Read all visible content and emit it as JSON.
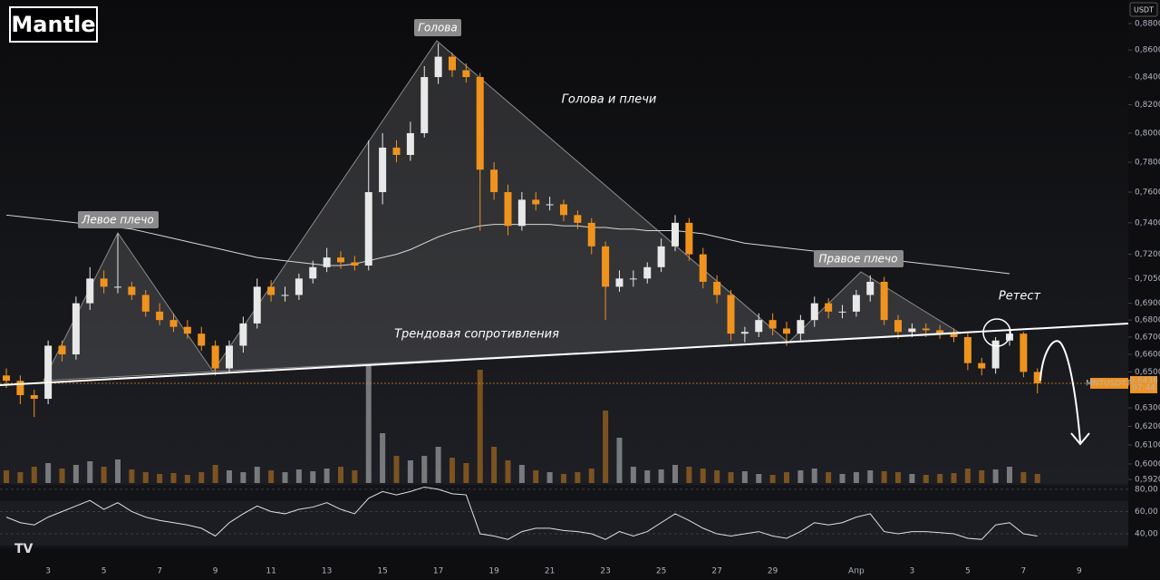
{
  "chart_data": {
    "type": "candlestick",
    "title": "Mantle",
    "currency": "USDT",
    "symbol": "MNTUSDT.P",
    "last_price": {
      "value": 0.6436,
      "label": "0,6436"
    },
    "countdown": "07:44",
    "annotations": {
      "head": "Голова",
      "left_shoulder": "Левое плечо",
      "right_shoulder": "Правое плечо",
      "pattern": "Голова и плечи",
      "trendline": "Трендовая сопротивления",
      "retest": "Ретест"
    },
    "log_scale": true,
    "colors": {
      "up": "#e8e8e8",
      "down": "#f0931e",
      "ma": "#d8d8d8",
      "rsi": "#e0e0e0"
    },
    "categories": [
      null,
      null,
      null,
      "3",
      null,
      null,
      null,
      "5",
      null,
      null,
      null,
      "7",
      null,
      null,
      null,
      "9",
      null,
      null,
      null,
      "11",
      null,
      null,
      null,
      "13",
      null,
      null,
      null,
      "15",
      null,
      null,
      null,
      "17",
      null,
      null,
      null,
      "19",
      null,
      null,
      null,
      "21",
      null,
      null,
      null,
      "23",
      null,
      null,
      null,
      "25",
      null,
      null,
      null,
      "27",
      null,
      null,
      null,
      "29",
      null,
      null,
      null,
      null,
      null,
      "Апр",
      null,
      null,
      null,
      "3",
      null,
      null,
      null,
      "5",
      null,
      null,
      null,
      "7",
      null,
      null,
      null,
      "9"
    ],
    "open": [
      0.648,
      0.645,
      0.637,
      0.635,
      0.665,
      0.66,
      0.69,
      0.705,
      0.7,
      0.7,
      0.695,
      0.685,
      0.68,
      0.676,
      0.672,
      0.665,
      0.652,
      0.665,
      0.678,
      0.7,
      0.695,
      0.695,
      0.705,
      0.712,
      0.718,
      0.715,
      0.713,
      0.76,
      0.79,
      0.785,
      0.8,
      0.84,
      0.855,
      0.845,
      0.84,
      0.775,
      0.76,
      0.738,
      0.755,
      0.752,
      0.752,
      0.745,
      0.74,
      0.725,
      0.7,
      0.705,
      0.705,
      0.712,
      0.725,
      0.74,
      0.72,
      0.703,
      0.695,
      0.672,
      0.673,
      0.68,
      0.675,
      0.672,
      0.68,
      0.69,
      0.685,
      0.685,
      0.695,
      0.703,
      0.68,
      0.673,
      0.675,
      0.674,
      0.672,
      0.67,
      0.655,
      0.652,
      0.668,
      0.672,
      0.65,
      null,
      null,
      null
    ],
    "high": [
      0.652,
      0.648,
      0.64,
      0.668,
      0.668,
      0.694,
      0.712,
      0.71,
      0.733,
      0.703,
      0.698,
      0.69,
      0.684,
      0.68,
      0.676,
      0.668,
      0.668,
      0.682,
      0.705,
      0.704,
      0.7,
      0.708,
      0.716,
      0.724,
      0.722,
      0.719,
      0.795,
      0.8,
      0.795,
      0.808,
      0.848,
      0.865,
      0.858,
      0.85,
      0.843,
      0.78,
      0.765,
      0.76,
      0.76,
      0.757,
      0.755,
      0.748,
      0.743,
      0.728,
      0.71,
      0.71,
      0.715,
      0.73,
      0.745,
      0.743,
      0.724,
      0.707,
      0.698,
      0.676,
      0.684,
      0.684,
      0.679,
      0.683,
      0.694,
      0.693,
      0.689,
      0.698,
      0.707,
      0.706,
      0.683,
      0.678,
      0.678,
      0.677,
      0.675,
      0.672,
      0.658,
      0.67,
      0.675,
      0.673,
      0.652,
      null,
      null,
      null
    ],
    "low": [
      0.641,
      0.632,
      0.625,
      0.632,
      0.656,
      0.657,
      0.686,
      0.696,
      0.696,
      0.692,
      0.682,
      0.677,
      0.673,
      0.669,
      0.662,
      0.648,
      0.65,
      0.661,
      0.675,
      0.691,
      0.691,
      0.692,
      0.702,
      0.709,
      0.711,
      0.71,
      0.71,
      0.752,
      0.78,
      0.781,
      0.797,
      0.835,
      0.84,
      0.836,
      0.735,
      0.755,
      0.732,
      0.735,
      0.748,
      0.748,
      0.741,
      0.736,
      0.72,
      0.68,
      0.697,
      0.7,
      0.702,
      0.709,
      0.722,
      0.716,
      0.699,
      0.69,
      0.668,
      0.667,
      0.67,
      0.671,
      0.665,
      0.668,
      0.676,
      0.681,
      0.681,
      0.682,
      0.691,
      0.677,
      0.669,
      0.67,
      0.67,
      0.669,
      0.667,
      0.651,
      0.648,
      0.649,
      0.665,
      0.647,
      0.638,
      null,
      null,
      null
    ],
    "close": [
      0.645,
      0.637,
      0.635,
      0.665,
      0.66,
      0.69,
      0.705,
      0.7,
      0.7,
      0.695,
      0.685,
      0.68,
      0.676,
      0.672,
      0.665,
      0.652,
      0.665,
      0.678,
      0.7,
      0.695,
      0.695,
      0.705,
      0.712,
      0.718,
      0.715,
      0.713,
      0.76,
      0.79,
      0.785,
      0.8,
      0.84,
      0.855,
      0.845,
      0.84,
      0.775,
      0.76,
      0.738,
      0.755,
      0.752,
      0.752,
      0.745,
      0.74,
      0.725,
      0.7,
      0.705,
      0.705,
      0.712,
      0.725,
      0.74,
      0.72,
      0.703,
      0.695,
      0.672,
      0.673,
      0.68,
      0.675,
      0.672,
      0.68,
      0.69,
      0.685,
      0.685,
      0.695,
      0.703,
      0.68,
      0.673,
      0.675,
      0.674,
      0.672,
      0.67,
      0.655,
      0.652,
      0.668,
      0.672,
      0.65,
      0.6436,
      null,
      null,
      null
    ],
    "volume": [
      14,
      12,
      18,
      22,
      16,
      20,
      24,
      18,
      26,
      15,
      12,
      10,
      11,
      9,
      12,
      20,
      14,
      12,
      18,
      14,
      12,
      15,
      13,
      16,
      18,
      14,
      130,
      55,
      30,
      25,
      30,
      40,
      28,
      22,
      125,
      40,
      25,
      20,
      14,
      12,
      10,
      12,
      16,
      80,
      50,
      18,
      14,
      15,
      20,
      18,
      16,
      14,
      12,
      13,
      10,
      9,
      12,
      14,
      16,
      12,
      10,
      12,
      14,
      13,
      12,
      10,
      9,
      10,
      11,
      16,
      14,
      15,
      18,
      12,
      10,
      null,
      null,
      null
    ],
    "ma": [
      0.745,
      0.744,
      0.743,
      0.742,
      0.741,
      0.74,
      0.739,
      0.738,
      0.737,
      0.736,
      0.734,
      0.732,
      0.73,
      0.728,
      0.726,
      0.724,
      0.722,
      0.72,
      0.718,
      0.717,
      0.716,
      0.715,
      0.714,
      0.713,
      0.713,
      0.714,
      0.716,
      0.718,
      0.72,
      0.723,
      0.727,
      0.731,
      0.734,
      0.736,
      0.738,
      0.739,
      0.739,
      0.739,
      0.739,
      0.739,
      0.738,
      0.738,
      0.737,
      0.737,
      0.736,
      0.736,
      0.735,
      0.735,
      0.735,
      0.734,
      0.733,
      0.731,
      0.729,
      0.727,
      0.726,
      0.725,
      0.724,
      0.723,
      0.722,
      0.721,
      0.72,
      0.719,
      0.718,
      0.717,
      0.716,
      0.715,
      0.714,
      0.713,
      0.712,
      0.711,
      0.71,
      0.709,
      0.708,
      null,
      null,
      null,
      null,
      null
    ],
    "ylim": [
      0.592,
      0.88
    ],
    "yticks": [
      {
        "value": 0.88,
        "label": "0,8800"
      },
      {
        "value": 0.86,
        "label": "0,8600"
      },
      {
        "value": 0.84,
        "label": "0,8400"
      },
      {
        "value": 0.82,
        "label": "0,8200"
      },
      {
        "value": 0.8,
        "label": "0,8000"
      },
      {
        "value": 0.78,
        "label": "0,7800"
      },
      {
        "value": 0.76,
        "label": "0,7600"
      },
      {
        "value": 0.74,
        "label": "0,7400"
      },
      {
        "value": 0.72,
        "label": "0,7200"
      },
      {
        "value": 0.705,
        "label": "0,7050"
      },
      {
        "value": 0.69,
        "label": "0,6900"
      },
      {
        "value": 0.68,
        "label": "0,6800"
      },
      {
        "value": 0.67,
        "label": "0,6700"
      },
      {
        "value": 0.66,
        "label": "0,6600"
      },
      {
        "value": 0.65,
        "label": "0,6500"
      },
      {
        "value": 0.63,
        "label": "0,6300"
      },
      {
        "value": 0.62,
        "label": "0,6200"
      },
      {
        "value": 0.61,
        "label": "0,6100"
      },
      {
        "value": 0.6,
        "label": "0,6000"
      },
      {
        "value": 0.592,
        "label": "0,5920"
      }
    ],
    "rsi": {
      "ylim": [
        27,
        84
      ],
      "yticks": [
        {
          "value": 80,
          "label": "80,00"
        },
        {
          "value": 60,
          "label": "60,00"
        },
        {
          "value": 40,
          "label": "40,00"
        }
      ],
      "values": [
        55,
        50,
        48,
        55,
        60,
        65,
        70,
        62,
        68,
        60,
        55,
        52,
        50,
        48,
        45,
        38,
        50,
        58,
        65,
        60,
        58,
        62,
        64,
        68,
        62,
        58,
        72,
        78,
        75,
        78,
        82,
        80,
        76,
        75,
        40,
        38,
        35,
        42,
        45,
        45,
        43,
        42,
        40,
        35,
        42,
        38,
        42,
        50,
        58,
        52,
        45,
        40,
        38,
        40,
        42,
        38,
        36,
        42,
        50,
        48,
        50,
        55,
        58,
        42,
        40,
        42,
        42,
        41,
        40,
        36,
        35,
        48,
        50,
        40,
        38,
        null,
        null,
        null
      ]
    }
  }
}
